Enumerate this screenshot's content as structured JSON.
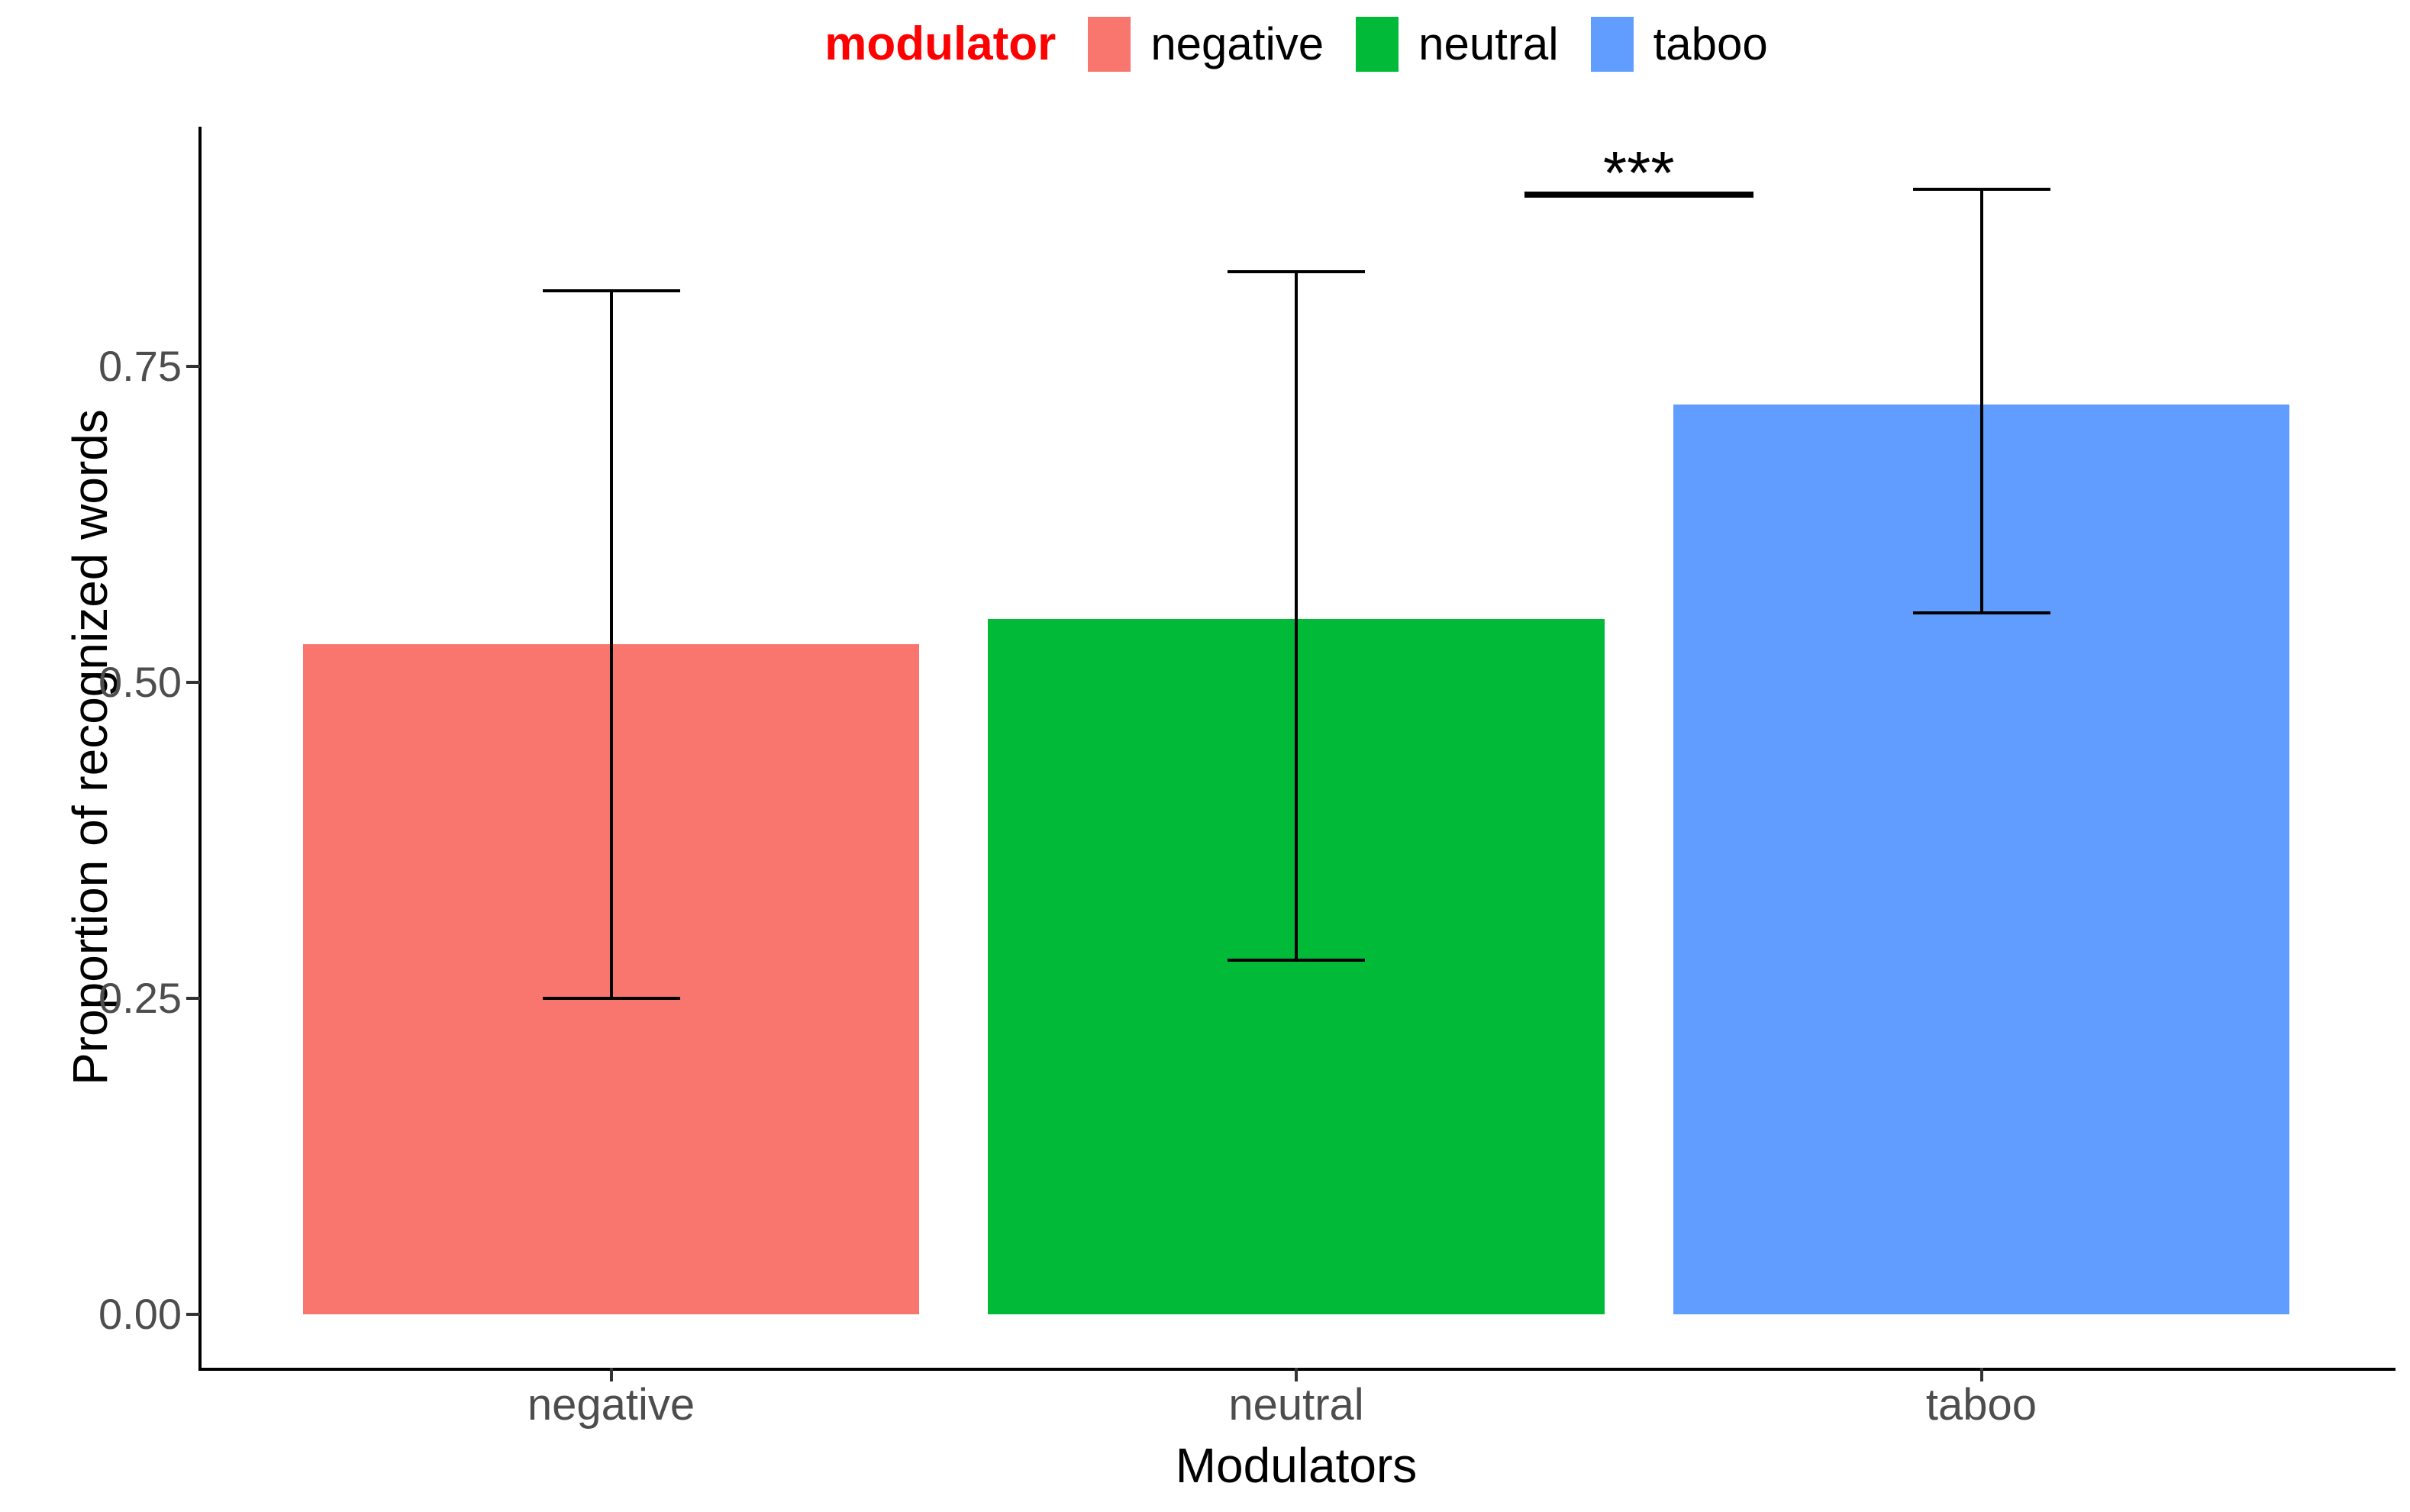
{
  "chart_data": {
    "type": "bar",
    "title": "",
    "xlabel": "Modulators",
    "ylabel": "Proportion of recognized words",
    "categories": [
      "negative",
      "neutral",
      "taboo"
    ],
    "values": [
      0.53,
      0.55,
      0.72
    ],
    "error_bars": {
      "lower": [
        0.25,
        0.28,
        0.555
      ],
      "upper": [
        0.81,
        0.825,
        0.89
      ]
    },
    "bar_colors": [
      "#F8766D",
      "#00BA38",
      "#619CFF"
    ],
    "ylim": [
      0,
      0.94
    ],
    "yticks": [
      0,
      0.25,
      0.5,
      0.75
    ],
    "ytick_labels": [
      "0.00",
      "0.25",
      "0.50",
      "0.75"
    ],
    "grid": "off",
    "legend": {
      "position": "top",
      "title": "modulator",
      "title_color": "#FF0000",
      "entries": [
        {
          "label": "negative",
          "color": "#F8766D"
        },
        {
          "label": "neutral",
          "color": "#00BA38"
        },
        {
          "label": "taboo",
          "color": "#619CFF"
        }
      ]
    },
    "annotation": {
      "label": "***",
      "between": [
        "neutral",
        "taboo"
      ],
      "y_value": 0.888
    }
  }
}
